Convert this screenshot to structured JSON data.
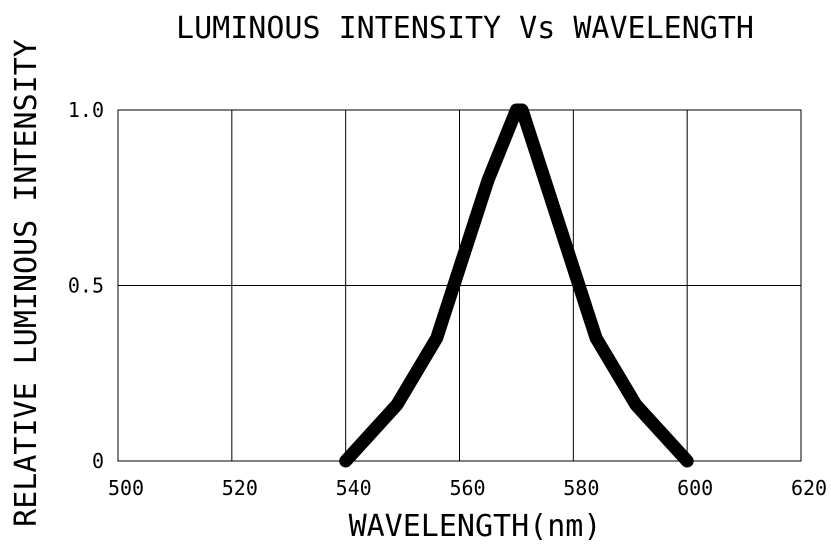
{
  "chart_data": {
    "type": "line",
    "title": "LUMINOUS INTENSITY Vs WAVELENGTH",
    "xlabel": "WAVELENGTH(nm)",
    "ylabel": "RELATIVE LUMINOUS INTENSITY",
    "xlim": [
      500,
      620
    ],
    "ylim": [
      0,
      1.0
    ],
    "x_ticks": [
      500,
      520,
      540,
      560,
      580,
      600,
      620
    ],
    "x_tick_labels": [
      "500",
      "520",
      "540",
      "560",
      "580",
      "600",
      "620"
    ],
    "y_ticks": [
      0,
      0.5,
      1.0
    ],
    "y_tick_labels": [
      "0",
      "0.5",
      "1.0"
    ],
    "grid": true,
    "series": [
      {
        "x": [
          540,
          549,
          556,
          560,
          565,
          570,
          571,
          575,
          580,
          584,
          591,
          600
        ],
        "y": [
          0,
          0.16,
          0.35,
          0.55,
          0.8,
          1.0,
          1.0,
          0.8,
          0.55,
          0.35,
          0.16,
          0
        ],
        "color": "#000000"
      }
    ]
  }
}
